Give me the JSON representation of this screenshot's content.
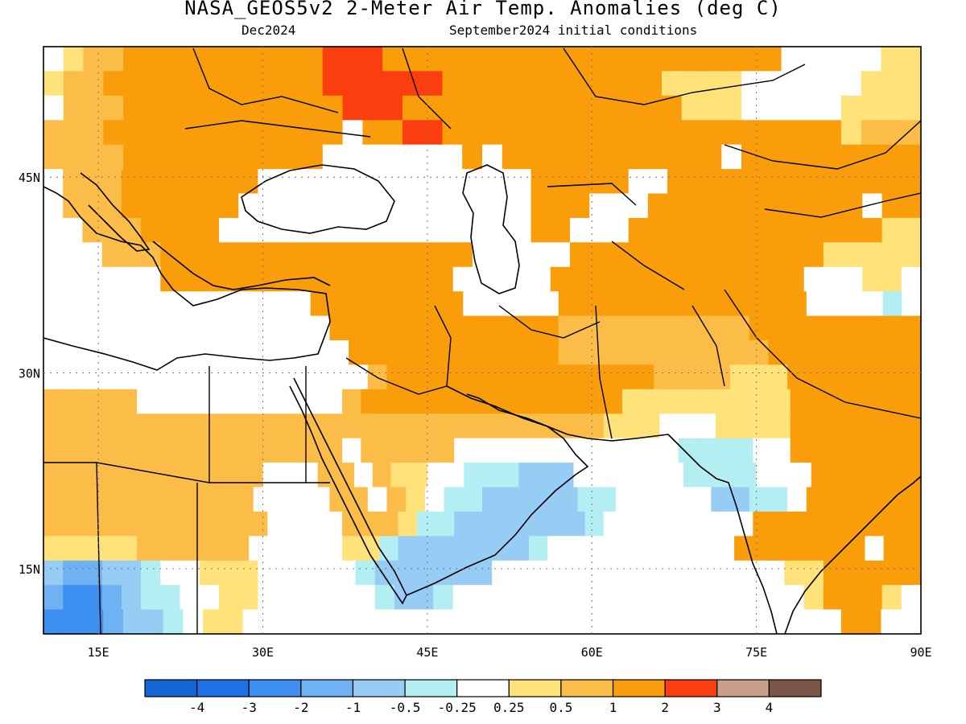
{
  "title": "NASA_GEOS5v2 2-Meter Air Temp. Anomalies (deg C)",
  "subtitle_left": "Dec2024",
  "subtitle_right": "September2024 initial conditions",
  "lat_ticks": [
    "45N",
    "30N",
    "15N"
  ],
  "lon_ticks": [
    "15E",
    "30E",
    "45E",
    "60E",
    "75E",
    "90E"
  ],
  "colorbar": {
    "colors": [
      "#1565d6",
      "#1e6fe8",
      "#3d8ff0",
      "#6eb2f3",
      "#97cdf5",
      "#b3eef2",
      "#ffffff",
      "#ffe27a",
      "#fbbd48",
      "#f99d0b",
      "#fa3e10",
      "#c8a08a",
      "#7a5548"
    ],
    "labels": [
      "-4",
      "-3",
      "-2",
      "-1",
      "-0.5",
      "-0.25",
      "0.25",
      "0.5",
      "1",
      "2",
      "3",
      "4"
    ]
  },
  "palette": {
    "w": "#ffffff",
    "y": "#ffe27a",
    "o": "#fbbd48",
    "d": "#f99d0b",
    "r": "#fa3e10",
    "c": "#b3eef2",
    "b": "#97cdf5",
    "l": "#6eb2f3",
    "m": "#3d8ff0"
  },
  "grid": [
    "wyooddddddddddrrrddddddddddddddddddddwwwwwyy",
    "yoodddddddddddrrrrrrdddddddddddyyyywwwwwwyyy",
    "wooodddddddddddrrrddddddddddddddyyywwwwwyyyy",
    "oooddddddddddddwddrrddddddddddddddddddddyooo",
    "ooooddddddddddwwwwwwwdwdddddddddddwddddddddd",
    "wooodddddddwwwwwwwwwwwwwwdddddwwddddddddddddd",
    "woooddddddwwwwwwwwwwwwwwwdddwwwdddddddddddwdd",
    "wwoooddddwwwwwwwwwwwwwwwwddwwwdddddddddddddyy",
    "wwwoooddddddddddddddddwwwwwdddddddddddddyyyyy",
    "wwwwwwdddddddddddddddwwwwwdddddddddddddwwwyyw",
    "wwwwwwwwwwwwwwddddddddwwwwwdddddddddddddwwwwcw",
    "wwwwwwwwwwwwwwwddddddddddddooooooooooddddddddd",
    "wwwwwwwwwwwwwwwwdddddddddddooooooooooodddddddd",
    "wwwwwwwwwwwwwwwwwoddddddddddddddooooyyyddddddd",
    "ooooowwwwwwwwwwwoddddddddddddddyyyyyyyyyddddddd",
    "ooooooooooooooooooooooooooooooyyywwwyyyyddddddd",
    "oooooooooooooooowooooowwwwwwwwwwwwccccwwddddddd",
    "oooooooooooowwwoowoyywwcccbbbwwwwwwccccwwwdddddd",
    "ooooooooooowwwwoowoywccbbbbbccwwwwwbbccwdddddd",
    "oooooooooooowwwwoooyccbbbbbbbcwwwwwwwwddddddddd",
    "yyyyyoooooowwwwwyycbbbbbbbcwwwwwwwwwwdddddddwdd",
    "bllbbcwwyyywwwwwcbbbbbbwwwwwwwwwwwwwwwyyddddd",
    "lmmlbccwwyywwwwwwcbbcwwwwwwwwwwwwwwwwwwydddyw",
    "mmmlbbcwyywwwwwwwwwwwwwwwwwwwwwwwwwwwwwwddww"
  ],
  "grid_box": {
    "lon0": 10,
    "lon1": 90,
    "lat0": 10,
    "lat1": 55
  }
}
